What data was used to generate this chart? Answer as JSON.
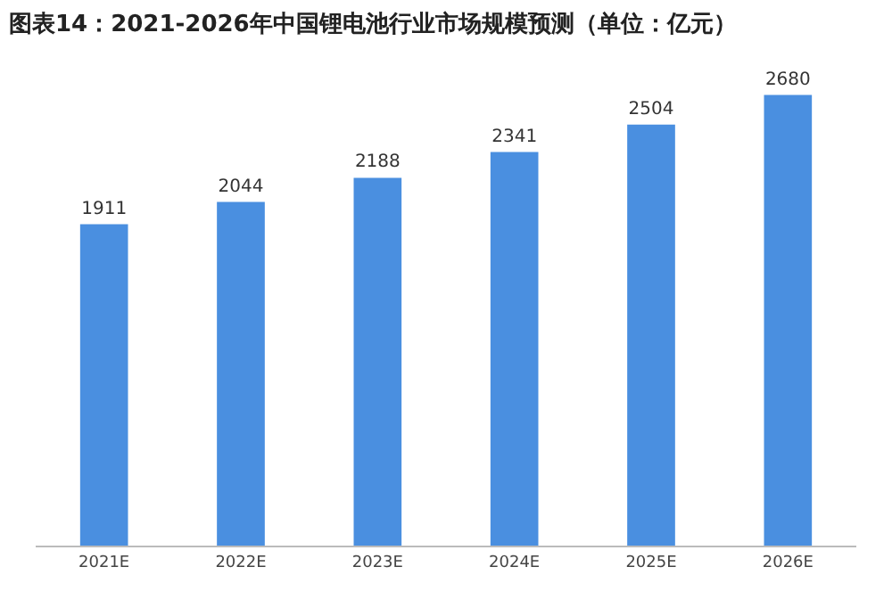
{
  "chart_data": {
    "type": "bar",
    "title": "图表14：2021-2026年中国锂电池行业市场规模预测（单位：亿元）",
    "categories": [
      "2021E",
      "2022E",
      "2023E",
      "2024E",
      "2025E",
      "2026E"
    ],
    "values": [
      1911,
      2044,
      2188,
      2341,
      2504,
      2680
    ],
    "color": "#4a8fe0",
    "tick_labels": "x",
    "data_labels": true
  }
}
